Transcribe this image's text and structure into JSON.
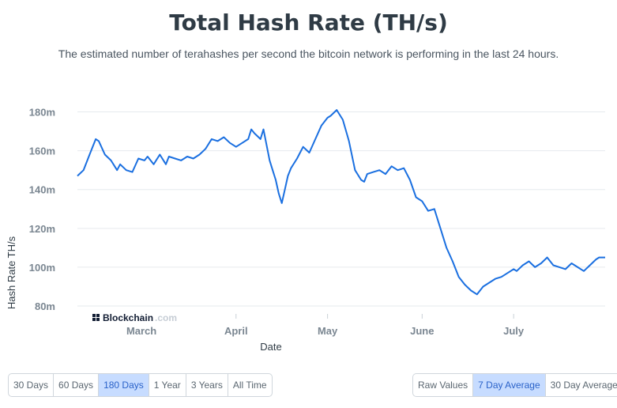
{
  "header": {
    "title": "Total Hash Rate (TH/s)",
    "subtitle": "The estimated number of terahashes per second the bitcoin network is performing in the last 24 hours."
  },
  "watermark": {
    "brand": "Blockchain",
    "suffix": ".com"
  },
  "timespan_buttons": {
    "options": [
      "30 Days",
      "60 Days",
      "180 Days",
      "1 Year",
      "3 Years",
      "All Time"
    ],
    "selected": "180 Days"
  },
  "average_buttons": {
    "options": [
      "Raw Values",
      "7 Day Average",
      "30 Day Average"
    ],
    "selected": "7 Day Average"
  },
  "chart_data": {
    "type": "line",
    "title": "Total Hash Rate (TH/s)",
    "xlabel": "Date",
    "ylabel": "Hash Rate TH/s",
    "x_ticks": [
      "March",
      "April",
      "May",
      "June",
      "July"
    ],
    "x_tick_dates": [
      "2021-03-01",
      "2021-04-01",
      "2021-05-01",
      "2021-06-01",
      "2021-07-01"
    ],
    "y_ticks": [
      "80m",
      "100m",
      "120m",
      "140m",
      "160m",
      "180m"
    ],
    "y_tick_values": [
      80000000,
      100000000,
      120000000,
      140000000,
      160000000,
      180000000
    ],
    "ylim": [
      80000000,
      190000000
    ],
    "xlim": [
      "2021-02-08",
      "2021-07-31"
    ],
    "grid": true,
    "line_color": "#1a6fe0",
    "series": [
      {
        "x": [
          "2021-02-08",
          "2021-02-10",
          "2021-02-12",
          "2021-02-14",
          "2021-02-15",
          "2021-02-17",
          "2021-02-19",
          "2021-02-21",
          "2021-02-22",
          "2021-02-24",
          "2021-02-26",
          "2021-02-28",
          "2021-03-02",
          "2021-03-03",
          "2021-03-05",
          "2021-03-07",
          "2021-03-09",
          "2021-03-10",
          "2021-03-12",
          "2021-03-14",
          "2021-03-16",
          "2021-03-18",
          "2021-03-20",
          "2021-03-22",
          "2021-03-24",
          "2021-03-26",
          "2021-03-28",
          "2021-03-30",
          "2021-04-01",
          "2021-04-03",
          "2021-04-05",
          "2021-04-06",
          "2021-04-07",
          "2021-04-09",
          "2021-04-10",
          "2021-04-12",
          "2021-04-13",
          "2021-04-14",
          "2021-04-15",
          "2021-04-16",
          "2021-04-17",
          "2021-04-18",
          "2021-04-19",
          "2021-04-21",
          "2021-04-23",
          "2021-04-25",
          "2021-04-27",
          "2021-04-29",
          "2021-05-01",
          "2021-05-02",
          "2021-05-04",
          "2021-05-06",
          "2021-05-08",
          "2021-05-10",
          "2021-05-12",
          "2021-05-13",
          "2021-05-14",
          "2021-05-16",
          "2021-05-18",
          "2021-05-20",
          "2021-05-22",
          "2021-05-24",
          "2021-05-26",
          "2021-05-28",
          "2021-05-30",
          "2021-06-01",
          "2021-06-03",
          "2021-06-05",
          "2021-06-07",
          "2021-06-09",
          "2021-06-11",
          "2021-06-13",
          "2021-06-15",
          "2021-06-17",
          "2021-06-19",
          "2021-06-21",
          "2021-06-23",
          "2021-06-25",
          "2021-06-27",
          "2021-06-29",
          "2021-07-01",
          "2021-07-02",
          "2021-07-04",
          "2021-07-06",
          "2021-07-08",
          "2021-07-10",
          "2021-07-12",
          "2021-07-14",
          "2021-07-16",
          "2021-07-18",
          "2021-07-20",
          "2021-07-22",
          "2021-07-24",
          "2021-07-26",
          "2021-07-28",
          "2021-07-29",
          "2021-07-31"
        ],
        "values": [
          147000000,
          150000000,
          158000000,
          166000000,
          165000000,
          158000000,
          155000000,
          150000000,
          153000000,
          150000000,
          149000000,
          156000000,
          155000000,
          157000000,
          153000000,
          158000000,
          153000000,
          157000000,
          156000000,
          155000000,
          157000000,
          156000000,
          158000000,
          161000000,
          166000000,
          165000000,
          167000000,
          164000000,
          162000000,
          164000000,
          166000000,
          171000000,
          169000000,
          166000000,
          171000000,
          155000000,
          150000000,
          145000000,
          138000000,
          133000000,
          140000000,
          147000000,
          151000000,
          156000000,
          162000000,
          159000000,
          166000000,
          173000000,
          177000000,
          178000000,
          181000000,
          176000000,
          165000000,
          150000000,
          145000000,
          144000000,
          148000000,
          149000000,
          150000000,
          148000000,
          152000000,
          150000000,
          151000000,
          145000000,
          136000000,
          134000000,
          129000000,
          130000000,
          120000000,
          110000000,
          103000000,
          95000000,
          91000000,
          88000000,
          86000000,
          90000000,
          92000000,
          94000000,
          95000000,
          97000000,
          99000000,
          98000000,
          101000000,
          103000000,
          100000000,
          102000000,
          105000000,
          101000000,
          100000000,
          99000000,
          102000000,
          100000000,
          98000000,
          101000000,
          104000000,
          105000000,
          105000000
        ]
      }
    ]
  }
}
